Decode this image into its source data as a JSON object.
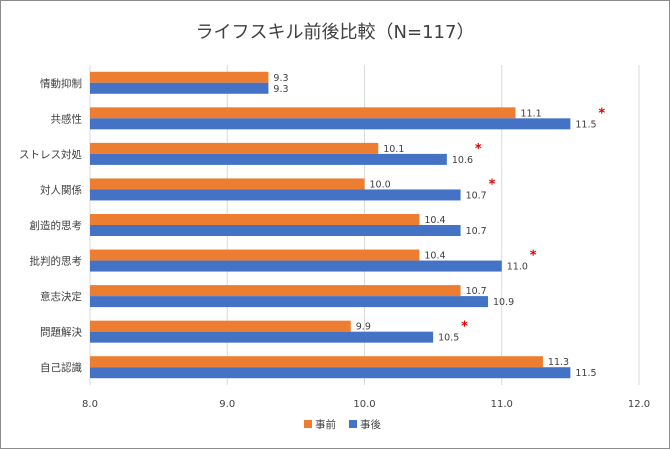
{
  "chart_data": {
    "type": "bar",
    "orientation": "horizontal",
    "title": "ライフスキル前後比較（N=117）",
    "categories": [
      "情動抑制",
      "共感性",
      "ストレス対処",
      "対人関係",
      "創造的思考",
      "批判的思考",
      "意志決定",
      "問題解決",
      "自己認識"
    ],
    "series": [
      {
        "name": "事前",
        "color": "#ed7d31",
        "values": [
          9.3,
          11.1,
          10.1,
          10.0,
          10.4,
          10.4,
          10.7,
          9.9,
          11.3
        ]
      },
      {
        "name": "事後",
        "color": "#4472c4",
        "values": [
          9.3,
          11.5,
          10.6,
          10.7,
          10.7,
          11.0,
          10.9,
          10.5,
          11.5
        ]
      }
    ],
    "data_labels": {
      "事前": [
        "9.3",
        "11.1",
        "10.1",
        "10.0",
        "10.4",
        "10.4",
        "10.7",
        "9.9",
        "11.3"
      ],
      "事後": [
        "9.3",
        "11.5",
        "10.6",
        "10.7",
        "10.7",
        "11.0",
        "10.9",
        "10.5",
        "11.5"
      ]
    },
    "significance_marks": [
      "",
      "*",
      "*",
      "*",
      "",
      "*",
      "",
      "*",
      ""
    ],
    "significance_color": "#e00000",
    "xlim": [
      8.0,
      12.0
    ],
    "x_ticks": [
      8.0,
      9.0,
      10.0,
      11.0,
      12.0
    ],
    "x_tick_labels": [
      "8.0",
      "9.0",
      "10.0",
      "11.0",
      "12.0"
    ],
    "grid": true,
    "legend_position": "bottom",
    "xlabel": "",
    "ylabel": ""
  }
}
